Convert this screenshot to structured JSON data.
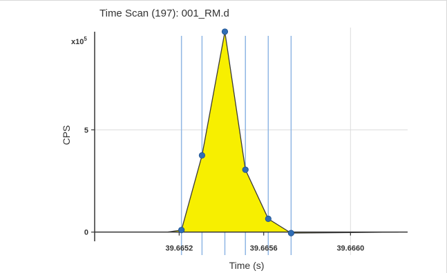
{
  "chart_data": {
    "type": "area",
    "title": "Time Scan (197): 001_RM.d",
    "xlabel": "Time (s)",
    "ylabel": "CPS",
    "y_multiplier_label": "x10⁵",
    "xlim": [
      39.66487,
      39.66624
    ],
    "ylim": [
      -0.45,
      10.0
    ],
    "x_ticks": [
      {
        "value": 39.66524,
        "label": "39.6652"
      },
      {
        "value": 39.66561,
        "label": "39.6656"
      },
      {
        "value": 39.66599,
        "label": "39.6660"
      }
    ],
    "y_ticks": [
      {
        "value": 0,
        "label": "0"
      },
      {
        "value": 5,
        "label": "5"
      }
    ],
    "grid_lines_x": [
      39.66599
    ],
    "grid_lines_y": [
      5
    ],
    "vertical_markers": [
      39.66525,
      39.66534,
      39.66544,
      39.66553,
      39.66563,
      39.66573
    ],
    "series": [
      {
        "values": [
          {
            "x": 39.66519,
            "y": 0.0
          },
          {
            "x": 39.66525,
            "y": 0.1
          },
          {
            "x": 39.66534,
            "y": 3.75
          },
          {
            "x": 39.66544,
            "y": 9.8
          },
          {
            "x": 39.66553,
            "y": 3.05
          },
          {
            "x": 39.66563,
            "y": 0.65
          },
          {
            "x": 39.66573,
            "y": -0.05
          },
          {
            "x": 39.6662,
            "y": 0.0
          }
        ],
        "markers": [
          {
            "x": 39.66525,
            "y": 0.1
          },
          {
            "x": 39.66534,
            "y": 3.75
          },
          {
            "x": 39.66544,
            "y": 9.8
          },
          {
            "x": 39.66553,
            "y": 3.05
          },
          {
            "x": 39.66563,
            "y": 0.65
          },
          {
            "x": 39.66573,
            "y": -0.05
          }
        ]
      }
    ],
    "colors": {
      "fill": "#f7ef00",
      "line": "#3a3a3a",
      "marker": "#2f6db5",
      "vertical_marker": "#8fb6e4",
      "grid": "#dcdcdc",
      "axis": "#333333"
    }
  }
}
